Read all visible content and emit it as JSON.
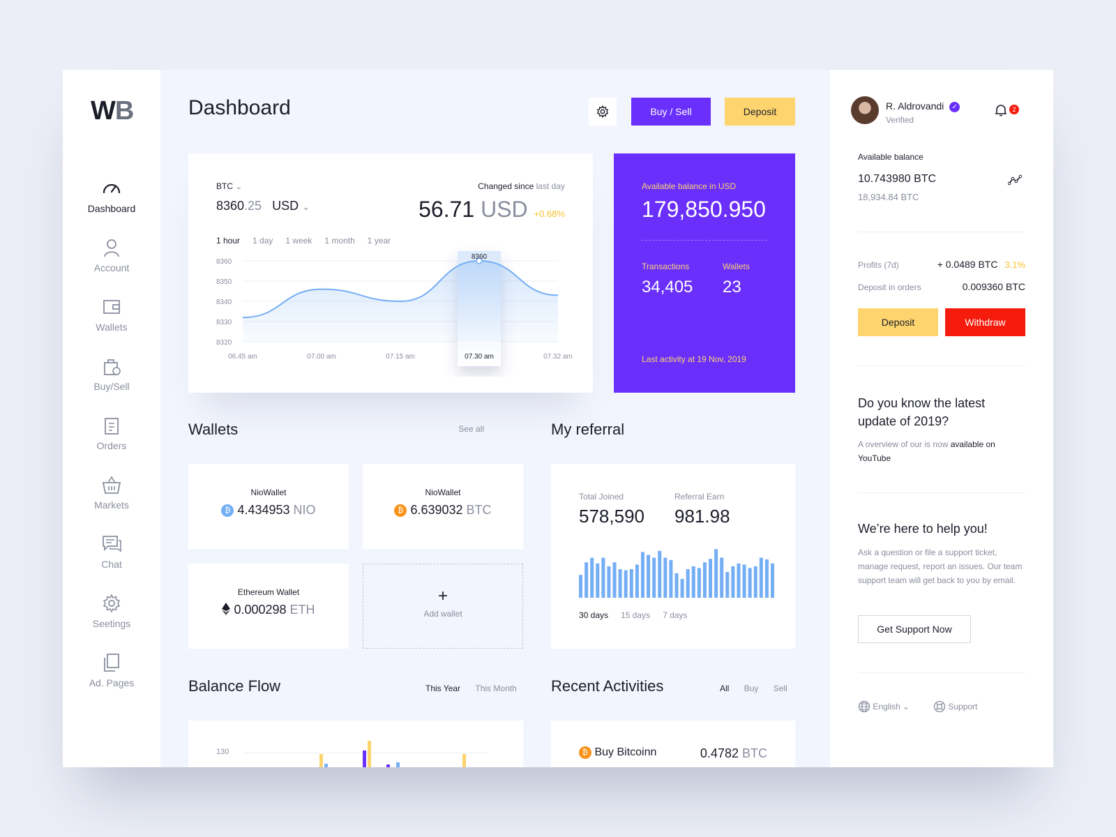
{
  "brand": {
    "logo_w": "W",
    "logo_b": "B"
  },
  "nav": [
    {
      "label": "Dashboard",
      "icon": "speedometer-icon"
    },
    {
      "label": "Account",
      "icon": "user-icon"
    },
    {
      "label": "Wallets",
      "icon": "wallet-icon"
    },
    {
      "label": "Buy/Sell",
      "icon": "bag-icon"
    },
    {
      "label": "Orders",
      "icon": "clipboard-icon"
    },
    {
      "label": "Markets",
      "icon": "basket-icon"
    },
    {
      "label": "Chat",
      "icon": "chat-icon"
    },
    {
      "label": "Seetings",
      "icon": "gear-icon"
    },
    {
      "label": "Ad. Pages",
      "icon": "pages-icon"
    }
  ],
  "header": {
    "title": "Dashboard",
    "buy_sell": "Buy / Sell",
    "deposit": "Deposit"
  },
  "price_card": {
    "asset": "BTC",
    "price_int": "8360",
    "price_dec": ".25",
    "currency": "USD",
    "changed_label": "Changed since",
    "changed_period": "last day",
    "change_value": "56.71",
    "change_currency": "USD",
    "change_pct": "+0.68%",
    "ranges": [
      "1 hour",
      "1 day",
      "1 week",
      "1 month",
      "1 year"
    ],
    "tooltip_value": "8360"
  },
  "chart_data": {
    "type": "line",
    "x": [
      "06.45 am",
      "07.00 am",
      "07.15 am",
      "07.30 am",
      "07.32 am"
    ],
    "y_ticks": [
      "8360",
      "8350",
      "8340",
      "8330",
      "8320"
    ],
    "ylim": [
      8320,
      8360
    ],
    "series": [
      {
        "values": [
          8332,
          8346,
          8340,
          8360,
          8343
        ]
      }
    ],
    "highlight": "07.30 am"
  },
  "balance_card": {
    "label": "Available balance in USD",
    "value": "179,850.950",
    "transactions_label": "Transactions",
    "transactions": "34,405",
    "wallets_label": "Wallets",
    "wallets": "23",
    "last_activity": "Last activity at 19 Nov, 2019"
  },
  "wallets": {
    "title": "Wallets",
    "see_all": "See all",
    "items": [
      {
        "name": "NioWallet",
        "amount": "4.434953",
        "unit": "NIO",
        "icon": "bitcoin-blue-icon"
      },
      {
        "name": "NioWallet",
        "amount": "6.639032",
        "unit": "BTC",
        "icon": "bitcoin-orange-icon"
      },
      {
        "name": "Ethereum Wallet",
        "amount": "0.000298",
        "unit": "ETH",
        "icon": "ethereum-icon"
      }
    ],
    "add_label": "Add wallet"
  },
  "referral": {
    "title": "My referral",
    "joined_label": "Total Joined",
    "joined": "578,590",
    "earn_label": "Referral Earn",
    "earn": "981.98",
    "bars": [
      0.4,
      0.62,
      0.7,
      0.6,
      0.7,
      0.55,
      0.62,
      0.5,
      0.48,
      0.5,
      0.58,
      0.8,
      0.75,
      0.7,
      0.82,
      0.7,
      0.66,
      0.43,
      0.33,
      0.5,
      0.55,
      0.52,
      0.62,
      0.68,
      0.85,
      0.7,
      0.45,
      0.55,
      0.6,
      0.58,
      0.52,
      0.55,
      0.7,
      0.67,
      0.6
    ],
    "ranges": [
      "30 days",
      "15 days",
      "7  days"
    ]
  },
  "balance_flow": {
    "title": "Balance  Flow",
    "tab_year": "This Year",
    "tab_month": "This Month",
    "tick": "130"
  },
  "recent": {
    "title": "Recent Activities",
    "tabs": [
      "All",
      "Buy",
      "Sell"
    ],
    "item_label": "Buy Bitcoinn",
    "item_amount": "0.4782",
    "item_unit": "BTC"
  },
  "profile": {
    "name": "R. Aldrovandi",
    "status": "Verified",
    "notifications": "2"
  },
  "account": {
    "available_label": "Available balance",
    "btc": "10.743980 BTC",
    "btc_sub": "18,934.84 BTC",
    "profits_label": "Profits (7d)",
    "profits": "+ 0.0489 BTC",
    "profits_pct": "3.1%",
    "orders_label": "Deposit in orders",
    "orders": "0.009360 BTC",
    "deposit": "Deposit",
    "withdraw": "Withdraw"
  },
  "news": {
    "title": "Do you know the latest update of 2019?",
    "desc_a": "A overview of our is now",
    "desc_b": "available on YouTube"
  },
  "help": {
    "title": "We’re here to help you!",
    "desc": "Ask a question or file a support ticket, manage request, report an issues. Our team support team will get back to you by email.",
    "button": "Get Support Now"
  },
  "footer": {
    "language": "English",
    "support": "Support"
  },
  "colors": {
    "purple": "#6a2ffb",
    "yellow": "#fdd46d",
    "red": "#f61c0d",
    "chart_blue": "#74aef4",
    "btc_orange": "#f7931a"
  }
}
